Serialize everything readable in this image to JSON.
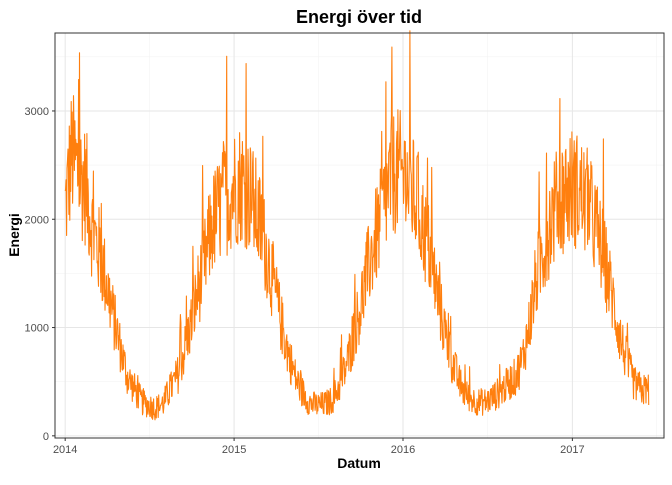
{
  "chart_data": {
    "type": "line",
    "title": "Energi över tid",
    "xlabel": "Datum",
    "ylabel": "Energi",
    "x_ticks": [
      "2014",
      "2015",
      "2016",
      "2017"
    ],
    "y_ticks": [
      "0",
      "1000",
      "2000",
      "3000"
    ],
    "xlim": [
      "2013-12-10",
      "2017-07-18"
    ],
    "ylim": [
      -20,
      3720
    ],
    "grid": true,
    "legend": "none",
    "colors": {
      "line": "#FF7F0E",
      "grid_major": "#e6e6e6",
      "grid_minor": "#f3f3f3",
      "border": "#333333"
    },
    "series": [
      {
        "x": [
          "2014-01-01",
          "2014-01-15",
          "2014-02-01",
          "2014-02-15",
          "2014-03-01",
          "2014-03-15",
          "2014-04-01",
          "2014-04-15",
          "2014-05-01",
          "2014-05-15",
          "2014-06-01",
          "2014-06-15",
          "2014-07-01",
          "2014-07-15",
          "2014-08-01",
          "2014-08-15",
          "2014-09-01",
          "2014-09-15",
          "2014-10-01",
          "2014-10-15",
          "2014-11-01",
          "2014-11-15",
          "2014-12-01",
          "2014-12-15",
          "2015-01-01",
          "2015-01-15",
          "2015-02-01",
          "2015-02-15",
          "2015-03-01",
          "2015-03-15",
          "2015-04-01",
          "2015-04-15",
          "2015-05-01",
          "2015-05-15",
          "2015-06-01",
          "2015-06-15",
          "2015-07-01",
          "2015-07-15",
          "2015-08-01",
          "2015-08-15",
          "2015-09-01",
          "2015-09-15",
          "2015-10-01",
          "2015-10-15",
          "2015-11-01",
          "2015-11-15",
          "2015-12-01",
          "2015-12-15",
          "2016-01-01",
          "2016-01-15",
          "2016-02-01",
          "2016-02-15",
          "2016-03-01",
          "2016-03-15",
          "2016-04-01",
          "2016-04-15",
          "2016-05-01",
          "2016-05-15",
          "2016-06-01",
          "2016-06-15",
          "2016-07-01",
          "2016-07-15",
          "2016-08-01",
          "2016-08-15",
          "2016-09-01",
          "2016-09-15",
          "2016-10-01",
          "2016-10-15",
          "2016-11-01",
          "2016-11-15",
          "2016-12-01",
          "2016-12-15",
          "2017-01-01",
          "2017-01-15",
          "2017-02-01",
          "2017-02-15",
          "2017-03-01",
          "2017-03-15",
          "2017-04-01",
          "2017-04-15",
          "2017-05-01",
          "2017-05-15",
          "2017-06-01",
          "2017-06-15"
        ],
        "y": [
          2100,
          2600,
          2400,
          2300,
          1900,
          1700,
          1400,
          1100,
          800,
          550,
          420,
          320,
          280,
          260,
          300,
          420,
          560,
          780,
          1050,
          1350,
          1650,
          1950,
          2100,
          2200,
          2300,
          2350,
          2250,
          2100,
          1900,
          1650,
          1300,
          1000,
          720,
          520,
          380,
          300,
          280,
          290,
          330,
          450,
          650,
          900,
          1200,
          1500,
          1800,
          2000,
          2300,
          2450,
          2400,
          2300,
          2150,
          1900,
          1650,
          1300,
          950,
          700,
          500,
          380,
          330,
          310,
          320,
          360,
          420,
          480,
          550,
          700,
          1050,
          1450,
          1750,
          2000,
          2150,
          2250,
          2300,
          2250,
          2150,
          2000,
          1800,
          1550,
          1200,
          900,
          650,
          480,
          420,
          430
        ]
      }
    ]
  }
}
